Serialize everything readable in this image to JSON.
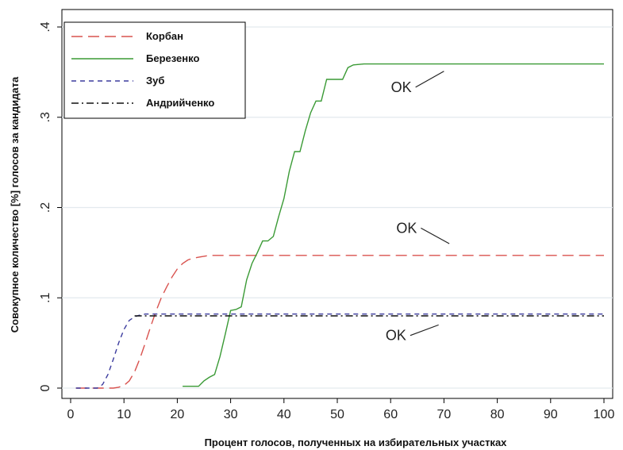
{
  "chart_data": {
    "type": "line",
    "xlabel": "Процент голосов, полученных на избирательных участках",
    "ylabel": "Совокупное количество [%] голосов за кандидата",
    "xlim": [
      0,
      100
    ],
    "ylim": [
      0,
      0.4
    ],
    "x_ticks": [
      0,
      10,
      20,
      30,
      40,
      50,
      60,
      70,
      80,
      90,
      100
    ],
    "x_tick_labels": [
      "0",
      "10",
      "20",
      "30",
      "40",
      "50",
      "60",
      "70",
      "80",
      "90",
      "100"
    ],
    "y_ticks": [
      0,
      0.1,
      0.2,
      0.3,
      0.4
    ],
    "y_tick_labels": [
      "0",
      ".1",
      ".2",
      ".3",
      ".4"
    ],
    "grid": "horizontal",
    "legend_position": "top-left",
    "series": [
      {
        "name": "Корбан",
        "color": "#d9534f",
        "dash": "long-dash",
        "x": [
          1,
          5,
          8,
          9,
          10,
          11,
          12,
          13,
          14,
          15,
          16,
          17,
          18,
          19,
          20,
          21,
          22,
          23,
          24,
          25,
          26,
          30,
          40,
          50,
          60,
          70,
          80,
          90,
          100
        ],
        "y": [
          0,
          0,
          0,
          0.001,
          0.003,
          0.008,
          0.018,
          0.033,
          0.05,
          0.068,
          0.085,
          0.1,
          0.112,
          0.123,
          0.132,
          0.138,
          0.142,
          0.144,
          0.145,
          0.146,
          0.147,
          0.147,
          0.147,
          0.147,
          0.147,
          0.147,
          0.147,
          0.147,
          0.147
        ]
      },
      {
        "name": "Березенко",
        "color": "#3a9a35",
        "dash": "solid",
        "x": [
          21,
          24,
          25,
          26,
          27,
          28,
          29,
          30,
          31,
          32,
          33,
          34,
          35,
          36,
          37,
          38,
          39,
          40,
          41,
          42,
          43,
          44,
          45,
          46,
          47,
          48,
          49,
          50,
          51,
          52,
          53,
          55,
          60,
          70,
          80,
          90,
          100
        ],
        "y": [
          0.002,
          0.002,
          0.008,
          0.012,
          0.015,
          0.035,
          0.06,
          0.086,
          0.087,
          0.09,
          0.12,
          0.138,
          0.15,
          0.163,
          0.163,
          0.168,
          0.19,
          0.21,
          0.24,
          0.262,
          0.262,
          0.285,
          0.305,
          0.318,
          0.318,
          0.342,
          0.342,
          0.342,
          0.342,
          0.355,
          0.358,
          0.359,
          0.359,
          0.359,
          0.359,
          0.359,
          0.359
        ]
      },
      {
        "name": "Зуб",
        "color": "#3b3b9e",
        "dash": "dash",
        "x": [
          1,
          5,
          6,
          7,
          8,
          9,
          10,
          11,
          12,
          13,
          14,
          20,
          30,
          40,
          50,
          60,
          70,
          80,
          90,
          100
        ],
        "y": [
          0,
          0,
          0.004,
          0.015,
          0.032,
          0.05,
          0.065,
          0.075,
          0.079,
          0.081,
          0.082,
          0.082,
          0.082,
          0.082,
          0.082,
          0.082,
          0.082,
          0.082,
          0.082,
          0.082
        ]
      },
      {
        "name": "Андрийченко",
        "color": "#111111",
        "dash": "dash-dot",
        "x": [
          12,
          14,
          16,
          20,
          30,
          40,
          50,
          60,
          70,
          80,
          90,
          100
        ],
        "y": [
          0.08,
          0.08,
          0.08,
          0.08,
          0.08,
          0.08,
          0.08,
          0.08,
          0.08,
          0.08,
          0.08,
          0.08
        ]
      }
    ],
    "annotations": [
      {
        "text": "OK",
        "x": 62,
        "y": 0.328,
        "arrow_to": [
          70,
          0.351
        ]
      },
      {
        "text": "OK",
        "x": 63,
        "y": 0.172,
        "arrow_to": [
          71,
          0.16
        ]
      },
      {
        "text": "OK",
        "x": 61,
        "y": 0.053,
        "arrow_to": [
          69,
          0.07
        ]
      }
    ]
  }
}
